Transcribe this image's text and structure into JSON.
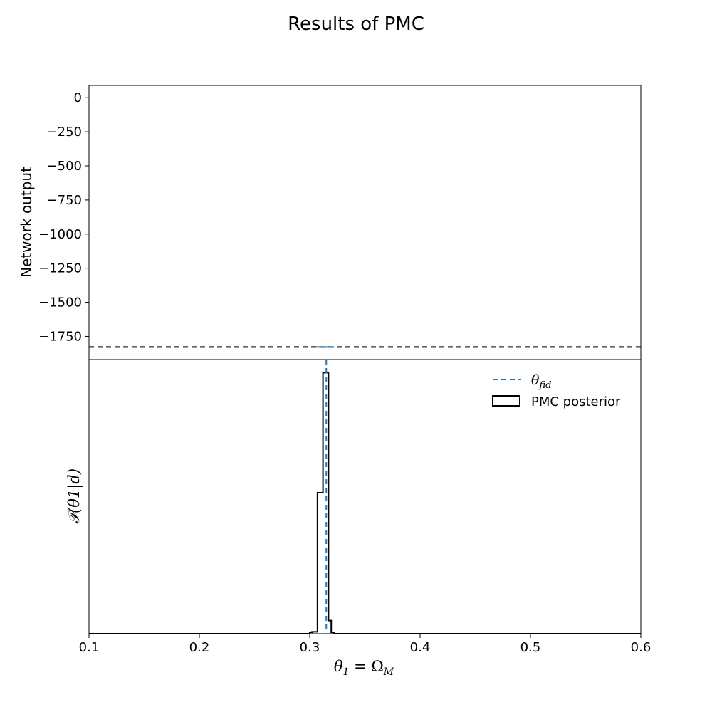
{
  "chart_data": [
    {
      "panel": "top",
      "type": "line",
      "title": "Results of PMC",
      "ylabel": "Network output",
      "ylim": [
        -1920,
        90
      ],
      "yticks": [
        0,
        -250,
        -500,
        -750,
        -1000,
        -1250,
        -1500,
        -1750
      ],
      "ytick_labels": [
        "0",
        "−250",
        "−500",
        "−750",
        "−1000",
        "−1250",
        "−1500",
        "−1750"
      ],
      "xlim": [
        0.1,
        0.6
      ],
      "grid": false,
      "series": [
        {
          "x": [
            0.306,
            0.322
          ],
          "y": [
            -1828,
            -1828
          ],
          "color": "#1f77b4",
          "style": "solid"
        }
      ],
      "reference_line": {
        "y": -1828,
        "color": "#000000",
        "style": "dashed"
      }
    },
    {
      "panel": "bottom",
      "type": "bar",
      "xlabel_prefix": "θ",
      "xlabel_sub": "1",
      "xlabel_mid": " = Ω",
      "xlabel_sub2": "M",
      "ylabel": "𝒫(θ1|d)",
      "xlim": [
        0.1,
        0.6
      ],
      "xticks": [
        0.1,
        0.2,
        0.3,
        0.4,
        0.5,
        0.6
      ],
      "xtick_labels": [
        "0.1",
        "0.2",
        "0.3",
        "0.4",
        "0.5",
        "0.6"
      ],
      "ylim": [
        0,
        1.05
      ],
      "grid": false,
      "histogram": {
        "edges": [
          0.1,
          0.3,
          0.302,
          0.307,
          0.312,
          0.317,
          0.3195,
          0.322,
          0.6
        ],
        "values": [
          0,
          0.005,
          0.007,
          0.54,
          1.0,
          0.05,
          0.005,
          0
        ]
      },
      "fid_line": {
        "x": 0.315,
        "color": "#1f77b4",
        "style": "dashed"
      },
      "legend": {
        "position": "top-right",
        "entries": [
          {
            "prefix": "θ",
            "sub": "fid",
            "color": "#1f77b4",
            "style": "dashed"
          },
          {
            "label": "PMC posterior",
            "color": "#000000",
            "style": "box"
          }
        ]
      }
    }
  ]
}
